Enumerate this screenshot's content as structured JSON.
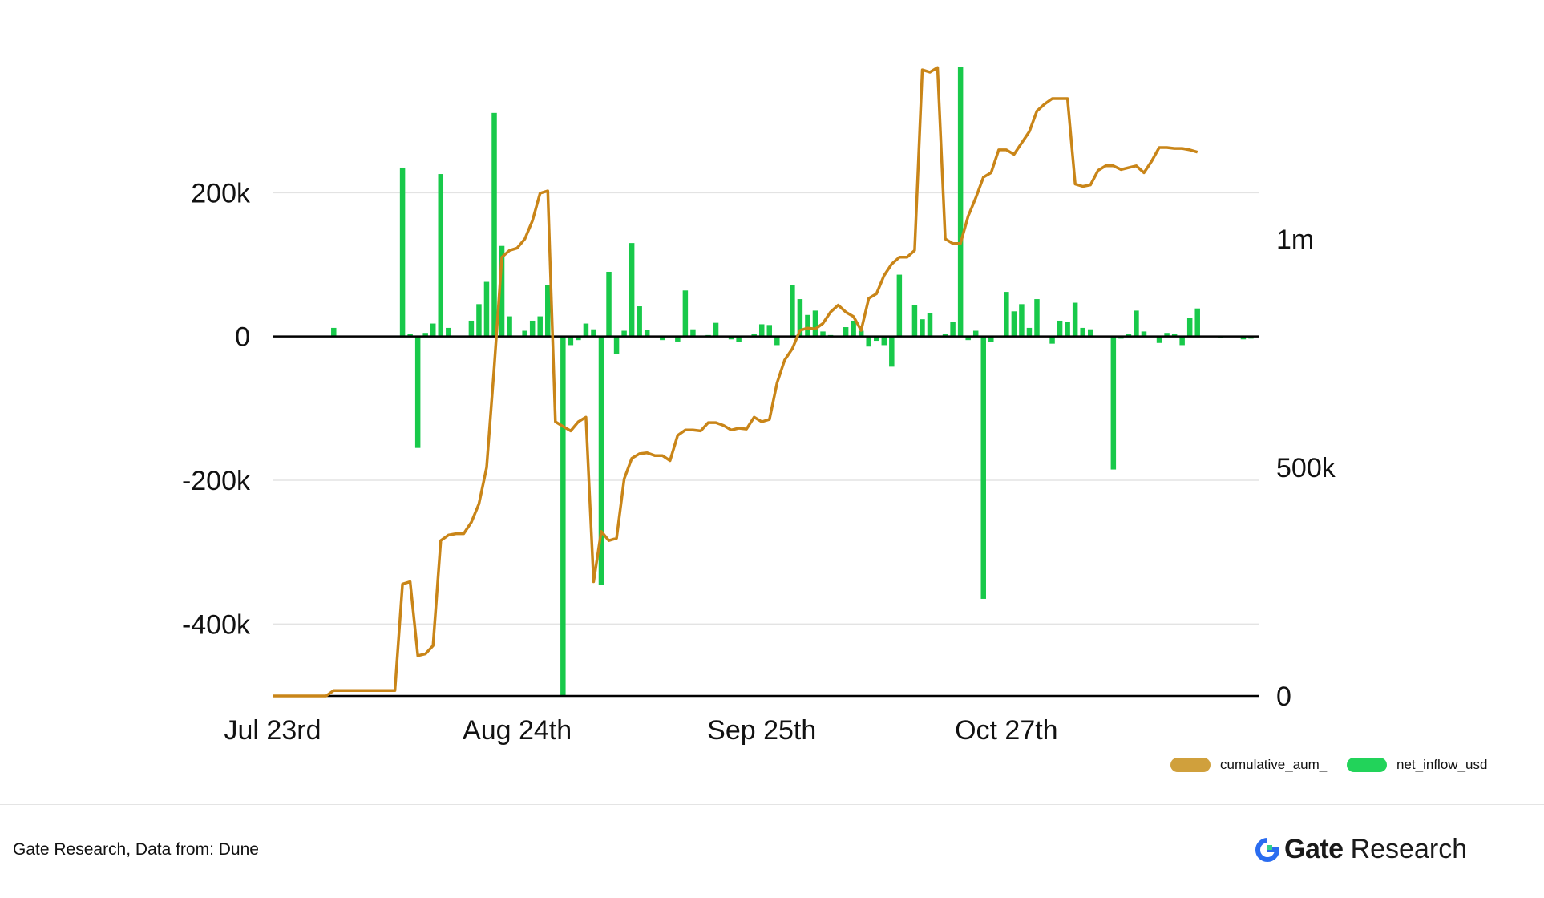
{
  "chart_data": {
    "type": "bar+line",
    "title": "",
    "xlabel": "",
    "x_start": "2024-07-23",
    "x_end": "2024-11-29",
    "x_tick_labels": [
      {
        "date": "2024-07-23",
        "label": "Jul 23rd"
      },
      {
        "date": "2024-08-24",
        "label": "Aug 24th"
      },
      {
        "date": "2024-09-25",
        "label": "Sep 25th"
      },
      {
        "date": "2024-10-27",
        "label": "Oct 27th"
      }
    ],
    "y_left": {
      "ylim": [
        -500000,
        390000
      ],
      "ticks": [
        200000,
        0,
        -200000,
        -400000
      ],
      "tick_labels": [
        "200k",
        "0",
        "-200k",
        "-400k"
      ]
    },
    "y_right": {
      "ylim": [
        0,
        1400000
      ],
      "ticks": [
        1000000,
        500000,
        0
      ],
      "tick_labels": [
        "1m",
        "500k",
        "0"
      ]
    },
    "grid": true,
    "legend_position": "bottom-right",
    "series": [
      {
        "name": "cumulative_aum_",
        "type": "line",
        "axis": "right",
        "color": "#c98518",
        "legend_color": "#d0a03c",
        "points": [
          [
            "2024-07-23",
            0
          ],
          [
            "2024-07-30",
            0
          ],
          [
            "2024-07-31",
            12000
          ],
          [
            "2024-08-08",
            12000
          ],
          [
            "2024-08-09",
            245000
          ],
          [
            "2024-08-10",
            250000
          ],
          [
            "2024-08-11",
            88000
          ],
          [
            "2024-08-12",
            92000
          ],
          [
            "2024-08-13",
            110000
          ],
          [
            "2024-08-14",
            340000
          ],
          [
            "2024-08-15",
            352000
          ],
          [
            "2024-08-16",
            355000
          ],
          [
            "2024-08-17",
            355000
          ],
          [
            "2024-08-18",
            380000
          ],
          [
            "2024-08-19",
            420000
          ],
          [
            "2024-08-20",
            500000
          ],
          [
            "2024-08-21",
            720000
          ],
          [
            "2024-08-22",
            960000
          ],
          [
            "2024-08-23",
            975000
          ],
          [
            "2024-08-24",
            980000
          ],
          [
            "2024-08-25",
            1000000
          ],
          [
            "2024-08-26",
            1040000
          ],
          [
            "2024-08-27",
            1100000
          ],
          [
            "2024-08-28",
            1105000
          ],
          [
            "2024-08-29",
            600000
          ],
          [
            "2024-08-30",
            590000
          ],
          [
            "2024-08-31",
            580000
          ],
          [
            "2024-09-01",
            600000
          ],
          [
            "2024-09-02",
            610000
          ],
          [
            "2024-09-03",
            250000
          ],
          [
            "2024-09-04",
            360000
          ],
          [
            "2024-09-05",
            340000
          ],
          [
            "2024-09-06",
            345000
          ],
          [
            "2024-09-07",
            475000
          ],
          [
            "2024-09-08",
            520000
          ],
          [
            "2024-09-09",
            530000
          ],
          [
            "2024-09-10",
            532000
          ],
          [
            "2024-09-11",
            526000
          ],
          [
            "2024-09-12",
            526000
          ],
          [
            "2024-09-13",
            515000
          ],
          [
            "2024-09-14",
            570000
          ],
          [
            "2024-09-15",
            582000
          ],
          [
            "2024-09-16",
            582000
          ],
          [
            "2024-09-17",
            580000
          ],
          [
            "2024-09-18",
            598000
          ],
          [
            "2024-09-19",
            598000
          ],
          [
            "2024-09-20",
            592000
          ],
          [
            "2024-09-21",
            582000
          ],
          [
            "2024-09-22",
            586000
          ],
          [
            "2024-09-23",
            584000
          ],
          [
            "2024-09-24",
            610000
          ],
          [
            "2024-09-25",
            600000
          ],
          [
            "2024-09-26",
            605000
          ],
          [
            "2024-09-27",
            685000
          ],
          [
            "2024-09-28",
            735000
          ],
          [
            "2024-09-29",
            760000
          ],
          [
            "2024-09-30",
            800000
          ],
          [
            "2024-10-01",
            805000
          ],
          [
            "2024-10-02",
            803000
          ],
          [
            "2024-10-03",
            815000
          ],
          [
            "2024-10-04",
            840000
          ],
          [
            "2024-10-05",
            855000
          ],
          [
            "2024-10-06",
            840000
          ],
          [
            "2024-10-07",
            830000
          ],
          [
            "2024-10-08",
            800000
          ],
          [
            "2024-10-09",
            870000
          ],
          [
            "2024-10-10",
            880000
          ],
          [
            "2024-10-11",
            920000
          ],
          [
            "2024-10-12",
            945000
          ],
          [
            "2024-10-13",
            960000
          ],
          [
            "2024-10-14",
            960000
          ],
          [
            "2024-10-15",
            975000
          ],
          [
            "2024-10-16",
            1370000
          ],
          [
            "2024-10-17",
            1365000
          ],
          [
            "2024-10-18",
            1375000
          ],
          [
            "2024-10-19",
            1000000
          ],
          [
            "2024-10-20",
            990000
          ],
          [
            "2024-10-21",
            990000
          ],
          [
            "2024-10-22",
            1050000
          ],
          [
            "2024-10-23",
            1090000
          ],
          [
            "2024-10-24",
            1135000
          ],
          [
            "2024-10-25",
            1145000
          ],
          [
            "2024-10-26",
            1195000
          ],
          [
            "2024-10-27",
            1195000
          ],
          [
            "2024-10-28",
            1185000
          ],
          [
            "2024-10-29",
            1210000
          ],
          [
            "2024-10-30",
            1235000
          ],
          [
            "2024-10-31",
            1280000
          ],
          [
            "2024-11-01",
            1295000
          ],
          [
            "2024-11-02",
            1307000
          ],
          [
            "2024-11-03",
            1307000
          ],
          [
            "2024-11-04",
            1307000
          ],
          [
            "2024-11-05",
            1120000
          ],
          [
            "2024-11-06",
            1115000
          ],
          [
            "2024-11-07",
            1118000
          ],
          [
            "2024-11-08",
            1150000
          ],
          [
            "2024-11-09",
            1160000
          ],
          [
            "2024-11-10",
            1160000
          ],
          [
            "2024-11-11",
            1152000
          ],
          [
            "2024-11-12",
            1156000
          ],
          [
            "2024-11-13",
            1160000
          ],
          [
            "2024-11-14",
            1145000
          ],
          [
            "2024-11-15",
            1170000
          ],
          [
            "2024-11-16",
            1200000
          ],
          [
            "2024-11-17",
            1200000
          ],
          [
            "2024-11-18",
            1198000
          ],
          [
            "2024-11-19",
            1198000
          ],
          [
            "2024-11-20",
            1195000
          ],
          [
            "2024-11-21",
            1190000
          ]
        ]
      },
      {
        "name": "net_inflow_usd",
        "type": "bar",
        "axis": "left",
        "color": "#18c94a",
        "legend_color": "#22d35a",
        "points": [
          [
            "2024-07-31",
            12000
          ],
          [
            "2024-08-09",
            235000
          ],
          [
            "2024-08-10",
            3000
          ],
          [
            "2024-08-11",
            -155000
          ],
          [
            "2024-08-12",
            5000
          ],
          [
            "2024-08-13",
            18000
          ],
          [
            "2024-08-14",
            226000
          ],
          [
            "2024-08-15",
            12000
          ],
          [
            "2024-08-18",
            22000
          ],
          [
            "2024-08-19",
            45000
          ],
          [
            "2024-08-20",
            76000
          ],
          [
            "2024-08-21",
            311000
          ],
          [
            "2024-08-22",
            126000
          ],
          [
            "2024-08-23",
            28000
          ],
          [
            "2024-08-25",
            8000
          ],
          [
            "2024-08-26",
            22000
          ],
          [
            "2024-08-27",
            28000
          ],
          [
            "2024-08-28",
            72000
          ],
          [
            "2024-08-30",
            -500000
          ],
          [
            "2024-08-31",
            -12000
          ],
          [
            "2024-09-01",
            -5000
          ],
          [
            "2024-09-02",
            18000
          ],
          [
            "2024-09-03",
            10000
          ],
          [
            "2024-09-04",
            -345000
          ],
          [
            "2024-09-05",
            90000
          ],
          [
            "2024-09-06",
            -24000
          ],
          [
            "2024-09-07",
            8000
          ],
          [
            "2024-09-08",
            130000
          ],
          [
            "2024-09-09",
            42000
          ],
          [
            "2024-09-10",
            9000
          ],
          [
            "2024-09-12",
            -5000
          ],
          [
            "2024-09-14",
            -7000
          ],
          [
            "2024-09-15",
            64000
          ],
          [
            "2024-09-16",
            10000
          ],
          [
            "2024-09-18",
            2000
          ],
          [
            "2024-09-19",
            19000
          ],
          [
            "2024-09-21",
            -4000
          ],
          [
            "2024-09-22",
            -8000
          ],
          [
            "2024-09-24",
            4000
          ],
          [
            "2024-09-25",
            17000
          ],
          [
            "2024-09-26",
            16000
          ],
          [
            "2024-09-27",
            -12000
          ],
          [
            "2024-09-29",
            72000
          ],
          [
            "2024-09-30",
            52000
          ],
          [
            "2024-10-01",
            30000
          ],
          [
            "2024-10-02",
            36000
          ],
          [
            "2024-10-03",
            7000
          ],
          [
            "2024-10-04",
            2000
          ],
          [
            "2024-10-06",
            13000
          ],
          [
            "2024-10-07",
            22000
          ],
          [
            "2024-10-08",
            8000
          ],
          [
            "2024-10-09",
            -14000
          ],
          [
            "2024-10-10",
            -6000
          ],
          [
            "2024-10-11",
            -12000
          ],
          [
            "2024-10-12",
            -42000
          ],
          [
            "2024-10-13",
            86000
          ],
          [
            "2024-10-15",
            44000
          ],
          [
            "2024-10-16",
            24000
          ],
          [
            "2024-10-17",
            32000
          ],
          [
            "2024-10-19",
            3000
          ],
          [
            "2024-10-20",
            20000
          ],
          [
            "2024-10-21",
            375000
          ],
          [
            "2024-10-22",
            -5000
          ],
          [
            "2024-10-23",
            8000
          ],
          [
            "2024-10-24",
            -365000
          ],
          [
            "2024-10-25",
            -8000
          ],
          [
            "2024-10-27",
            62000
          ],
          [
            "2024-10-28",
            35000
          ],
          [
            "2024-10-29",
            45000
          ],
          [
            "2024-10-30",
            12000
          ],
          [
            "2024-10-31",
            52000
          ],
          [
            "2024-11-02",
            -10000
          ],
          [
            "2024-11-03",
            22000
          ],
          [
            "2024-11-04",
            20000
          ],
          [
            "2024-11-05",
            47000
          ],
          [
            "2024-11-06",
            12000
          ],
          [
            "2024-11-07",
            10000
          ],
          [
            "2024-11-10",
            -185000
          ],
          [
            "2024-11-11",
            -3000
          ],
          [
            "2024-11-12",
            4000
          ],
          [
            "2024-11-13",
            36000
          ],
          [
            "2024-11-14",
            7000
          ],
          [
            "2024-11-16",
            -9000
          ],
          [
            "2024-11-17",
            5000
          ],
          [
            "2024-11-18",
            4000
          ],
          [
            "2024-11-19",
            -12000
          ],
          [
            "2024-11-20",
            26000
          ],
          [
            "2024-11-21",
            39000
          ],
          [
            "2024-11-24",
            -2000
          ],
          [
            "2024-11-27",
            -4000
          ],
          [
            "2024-11-28",
            -3000
          ]
        ]
      }
    ]
  },
  "footer": {
    "source": "Gate Research, Data from: Dune",
    "brand_gate": "Gate",
    "brand_research": "Research"
  }
}
